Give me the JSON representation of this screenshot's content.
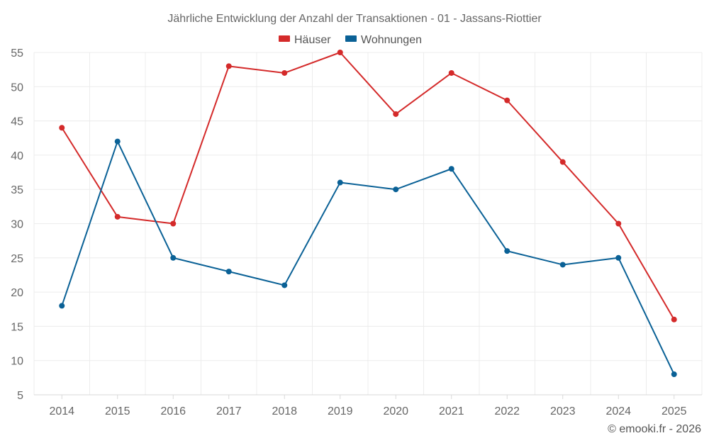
{
  "chart_data": {
    "type": "line",
    "title": "Jährliche Entwicklung der Anzahl der Transaktionen - 01 - Jassans-Riottier",
    "categories": [
      "2014",
      "2015",
      "2016",
      "2017",
      "2018",
      "2019",
      "2020",
      "2021",
      "2022",
      "2023",
      "2024",
      "2025"
    ],
    "series": [
      {
        "name": "Häuser",
        "color": "#d42a2a",
        "values": [
          44,
          31,
          30,
          53,
          52,
          55,
          46,
          52,
          48,
          39,
          30,
          16
        ]
      },
      {
        "name": "Wohnungen",
        "color": "#0a6196",
        "values": [
          18,
          42,
          25,
          23,
          21,
          36,
          35,
          38,
          26,
          24,
          25,
          8
        ]
      }
    ],
    "ylim": [
      5,
      55
    ],
    "yticks": [
      5,
      10,
      15,
      20,
      25,
      30,
      35,
      40,
      45,
      50,
      55
    ],
    "grid": true,
    "legend": "top-center",
    "xlabel": "",
    "ylabel": ""
  },
  "copyright": "© emooki.fr - 2026"
}
